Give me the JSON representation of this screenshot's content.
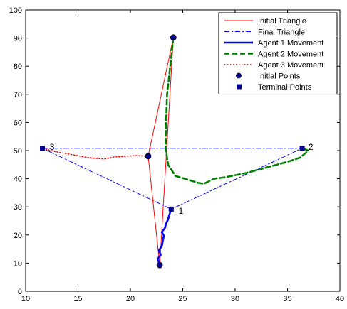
{
  "chart_data": {
    "type": "line",
    "xlim": [
      10,
      40
    ],
    "ylim": [
      0,
      100
    ],
    "xticks": [
      10,
      15,
      20,
      25,
      30,
      35,
      40
    ],
    "yticks": [
      0,
      10,
      20,
      30,
      40,
      50,
      60,
      70,
      80,
      90,
      100
    ],
    "grid": false,
    "legend_position": "top-right",
    "series": [
      {
        "name": "Initial Triangle",
        "color": "#ff0000",
        "style": "solid",
        "points": [
          [
            24.1,
            90.2
          ],
          [
            22.8,
            9.3
          ],
          [
            21.7,
            48.0
          ],
          [
            24.1,
            90.2
          ]
        ]
      },
      {
        "name": "Final Triangle",
        "color": "#0000ff",
        "style": "dashdot",
        "points": [
          [
            11.6,
            50.8
          ],
          [
            36.4,
            50.8
          ],
          [
            23.9,
            29.2
          ],
          [
            11.6,
            50.8
          ]
        ]
      },
      {
        "name": "Agent 1 Movement",
        "color": "#0000ff",
        "style": "thick-solid",
        "points": [
          [
            22.8,
            9.3
          ],
          [
            22.6,
            11.5
          ],
          [
            22.9,
            13.0
          ],
          [
            22.7,
            14.5
          ],
          [
            23.0,
            16.0
          ],
          [
            23.1,
            18.0
          ],
          [
            23.2,
            19.8
          ],
          [
            23.0,
            21.0
          ],
          [
            23.3,
            22.5
          ],
          [
            23.4,
            24.0
          ],
          [
            23.6,
            25.5
          ],
          [
            23.7,
            27.0
          ],
          [
            23.9,
            29.2
          ]
        ]
      },
      {
        "name": "Agent 2 Movement",
        "color": "#008000",
        "style": "dashed",
        "points": [
          [
            24.1,
            90.2
          ],
          [
            23.8,
            80.0
          ],
          [
            23.5,
            70.0
          ],
          [
            23.4,
            60.0
          ],
          [
            23.4,
            50.0
          ],
          [
            23.6,
            45.0
          ],
          [
            24.3,
            41.0
          ],
          [
            26.5,
            38.5
          ],
          [
            27.0,
            38.2
          ],
          [
            28.0,
            40.0
          ],
          [
            29.0,
            40.5
          ],
          [
            31.0,
            42.0
          ],
          [
            33.5,
            44.5
          ],
          [
            35.0,
            46.0
          ],
          [
            36.2,
            47.5
          ],
          [
            37.0,
            50.0
          ],
          [
            36.4,
            50.8
          ]
        ]
      },
      {
        "name": "Agent 3 Movement",
        "color": "#ff0000",
        "style": "dotted",
        "points": [
          [
            21.7,
            48.0
          ],
          [
            20.5,
            48.2
          ],
          [
            19.2,
            47.9
          ],
          [
            18.4,
            47.7
          ],
          [
            17.5,
            47.0
          ],
          [
            16.0,
            47.5
          ],
          [
            14.5,
            48.5
          ],
          [
            13.0,
            49.5
          ],
          [
            11.6,
            50.8
          ]
        ]
      }
    ],
    "initial_points": [
      [
        24.1,
        90.2
      ],
      [
        22.8,
        9.3
      ],
      [
        21.7,
        48.0
      ]
    ],
    "terminal_points": [
      [
        23.9,
        29.2
      ],
      [
        36.4,
        50.8
      ],
      [
        11.6,
        50.8
      ]
    ],
    "point_labels": [
      {
        "text": "1",
        "x": 24.6,
        "y": 28.5
      },
      {
        "text": "2",
        "x": 37.0,
        "y": 51.2
      },
      {
        "text": "3",
        "x": 12.3,
        "y": 51.2
      }
    ],
    "legend": [
      {
        "label": "Initial Triangle",
        "kind": "line",
        "color": "#ff0000",
        "style": "solid"
      },
      {
        "label": "Final Triangle",
        "kind": "line",
        "color": "#0000ff",
        "style": "dashdot"
      },
      {
        "label": "Agent 1 Movement",
        "kind": "line",
        "color": "#0000ff",
        "style": "thick-solid"
      },
      {
        "label": "Agent 2 Movement",
        "kind": "line",
        "color": "#008000",
        "style": "dashed"
      },
      {
        "label": "Agent 3 Movement",
        "kind": "line",
        "color": "#ff0000",
        "style": "dotted"
      },
      {
        "label": "Initial Points",
        "kind": "circle",
        "color": "#00008b"
      },
      {
        "label": "Terminal Points",
        "kind": "square",
        "color": "#00008b"
      }
    ]
  }
}
